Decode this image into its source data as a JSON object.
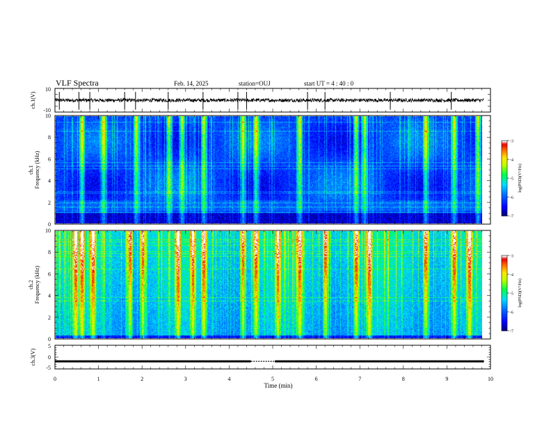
{
  "header": {
    "title": "VLF Spectra",
    "date": "Feb. 14, 2025",
    "station": "station=OUJ",
    "start_ut": "start  UT =   4 : 40 : 0"
  },
  "colors": {
    "background": "#ffffff",
    "axis": "#000000",
    "colormap": [
      "#000080",
      "#0000ff",
      "#0080ff",
      "#00ffff",
      "#00ff00",
      "#ffff00",
      "#ff8000",
      "#ff0000",
      "#ffffff"
    ]
  },
  "chart_data": [
    {
      "type": "line",
      "panel": "ch1-waveform",
      "ylabel": "ch.1(V)",
      "ylim": [
        -10,
        10
      ],
      "yticks": [
        "10",
        "-10"
      ],
      "xlim": [
        0,
        10
      ],
      "description_values": {
        "baseline_V": 0,
        "typical_amplitude_V": 1.5
      },
      "spike_times_min": [
        0.1,
        0.55,
        0.8,
        1.6,
        1.85,
        2.6,
        3.4,
        4.2,
        4.4,
        5.8,
        6.2,
        7.7,
        9.1
      ]
    },
    {
      "type": "heatmap",
      "panel": "ch1-spectrogram",
      "ylabel": "ch.1\nFrequency (kHz)",
      "ylim": [
        0,
        10
      ],
      "yticks": [
        "0",
        "2",
        "4",
        "6",
        "8",
        "10"
      ],
      "xlim": [
        0,
        9.8
      ],
      "colorbar": {
        "label": "log(PSD)(V²/Hz)",
        "range": [
          -7,
          -3
        ],
        "ticks": [
          "-3",
          "-4",
          "-5",
          "-6",
          "-7"
        ]
      },
      "bright_times_min": [
        0.6,
        1.1,
        1.85,
        2.6,
        2.9,
        3.4,
        4.3,
        4.6,
        5.6,
        6.9,
        7.1,
        8.5,
        9.15,
        9.7
      ]
    },
    {
      "type": "heatmap",
      "panel": "ch2-spectrogram",
      "ylabel": "ch.2\nFrequency (kHz)",
      "ylim": [
        0,
        10
      ],
      "yticks": [
        "0",
        "2",
        "4",
        "6",
        "8",
        "10"
      ],
      "xlim": [
        0,
        9.8
      ],
      "colorbar": {
        "label": "log(PSD)(V²/Hz)",
        "range": [
          -7,
          -3
        ],
        "ticks": [
          "-3",
          "-4",
          "-5",
          "-6",
          "-7"
        ]
      },
      "bright_times_min": [
        0.45,
        0.6,
        0.85,
        1.7,
        2.0,
        2.8,
        3.15,
        3.4,
        4.3,
        4.6,
        5.1,
        5.6,
        6.2,
        6.9,
        7.2,
        8.5,
        9.15,
        9.5
      ]
    },
    {
      "type": "line",
      "panel": "ch3-waveform",
      "ylabel": "ch.3(V)",
      "ylim": [
        -5,
        5
      ],
      "yticks": [
        "5",
        "0",
        "-5"
      ],
      "xlim": [
        0,
        10
      ],
      "xlabel": "Time (min)",
      "xticks": [
        "0",
        "1",
        "2",
        "3",
        "4",
        "5",
        "6",
        "7",
        "8",
        "9",
        "10"
      ],
      "level_V": -1.8,
      "gap_start_min": 4.5,
      "gap_end_min": 5.05
    }
  ]
}
